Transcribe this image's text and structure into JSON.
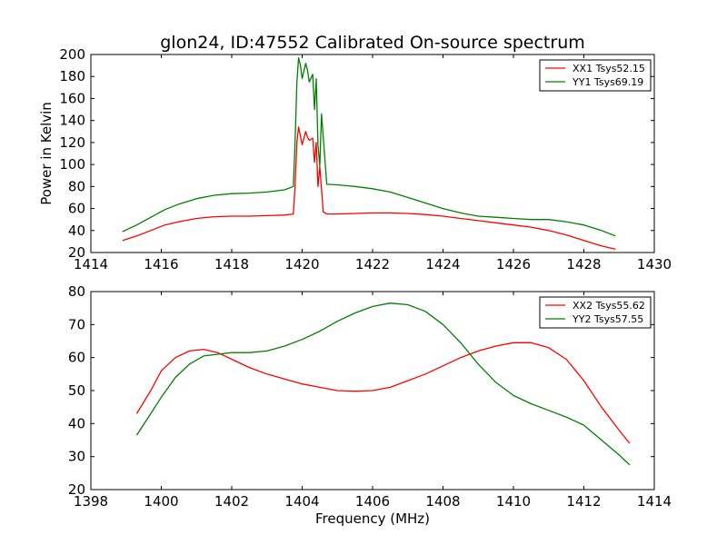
{
  "chart_data": [
    {
      "type": "line",
      "title": "glon24, ID:47552 Calibrated On-source spectrum",
      "xlabel": "",
      "ylabel": "Power in Kelvin",
      "xlim": [
        1414,
        1430
      ],
      "ylim": [
        20,
        200
      ],
      "xticks": [
        "1414",
        "1416",
        "1418",
        "1420",
        "1422",
        "1424",
        "1426",
        "1428",
        "1430"
      ],
      "yticks": [
        "20",
        "40",
        "60",
        "80",
        "100",
        "120",
        "140",
        "160",
        "180",
        "200"
      ],
      "legend_position": "top-right",
      "series": [
        {
          "name": "XX1 Tsys52.15",
          "color": "#ff0000",
          "x": [
            1414.9,
            1415.3,
            1415.7,
            1416.1,
            1416.5,
            1417.0,
            1417.5,
            1418.0,
            1418.5,
            1419.0,
            1419.5,
            1419.75,
            1419.8,
            1419.85,
            1419.9,
            1420.0,
            1420.1,
            1420.15,
            1420.2,
            1420.3,
            1420.35,
            1420.4,
            1420.45,
            1420.5,
            1420.6,
            1420.7,
            1421.0,
            1421.5,
            1422.0,
            1422.5,
            1423.0,
            1423.5,
            1424.0,
            1424.5,
            1425.0,
            1425.5,
            1426.0,
            1426.5,
            1427.0,
            1427.5,
            1428.0,
            1428.5,
            1428.9
          ],
          "y": [
            31,
            35,
            40,
            45,
            48,
            51,
            52.5,
            53,
            53,
            53.5,
            54,
            55,
            80,
            120,
            134,
            118,
            130,
            125,
            122,
            124,
            102,
            120,
            80,
            98,
            57,
            55,
            55,
            55.5,
            56,
            56,
            55.5,
            54.5,
            53,
            51,
            49,
            47,
            45,
            43,
            40,
            36,
            31,
            26,
            23
          ]
        },
        {
          "name": "YY1 Tsys69.19",
          "color": "#008000",
          "x": [
            1414.9,
            1415.3,
            1415.7,
            1416.1,
            1416.5,
            1417.0,
            1417.5,
            1418.0,
            1418.5,
            1419.0,
            1419.5,
            1419.75,
            1419.8,
            1419.85,
            1419.9,
            1419.95,
            1420.0,
            1420.1,
            1420.15,
            1420.2,
            1420.3,
            1420.35,
            1420.4,
            1420.45,
            1420.5,
            1420.55,
            1420.7,
            1421.0,
            1421.5,
            1422.0,
            1422.5,
            1423.0,
            1423.5,
            1424.0,
            1424.5,
            1425.0,
            1425.5,
            1426.0,
            1426.5,
            1427.0,
            1427.5,
            1428.0,
            1428.5,
            1428.9
          ],
          "y": [
            39,
            45,
            52,
            59,
            64,
            69,
            72,
            73.5,
            74,
            75,
            77,
            80,
            120,
            175,
            197,
            190,
            178,
            192,
            186,
            175,
            182,
            150,
            178,
            118,
            98,
            146,
            82,
            81.5,
            80,
            78,
            75,
            70,
            65,
            60,
            56,
            53,
            52,
            51,
            50,
            50,
            48,
            45,
            40,
            35
          ]
        }
      ]
    },
    {
      "type": "line",
      "title": "",
      "xlabel": "Frequency (MHz)",
      "ylabel": "",
      "xlim": [
        1398,
        1414
      ],
      "ylim": [
        20,
        80
      ],
      "xticks": [
        "1398",
        "1400",
        "1402",
        "1404",
        "1406",
        "1408",
        "1410",
        "1412",
        "1414"
      ],
      "yticks": [
        "20",
        "30",
        "40",
        "50",
        "60",
        "70",
        "80"
      ],
      "legend_position": "top-right",
      "series": [
        {
          "name": "XX2 Tsys55.62",
          "color": "#ff0000",
          "x": [
            1399.3,
            1399.7,
            1400.0,
            1400.4,
            1400.8,
            1401.2,
            1401.6,
            1402.0,
            1402.5,
            1403.0,
            1403.5,
            1404.0,
            1404.5,
            1405.0,
            1405.5,
            1406.0,
            1406.5,
            1407.0,
            1407.5,
            1408.0,
            1408.5,
            1409.0,
            1409.5,
            1410.0,
            1410.5,
            1411.0,
            1411.5,
            1412.0,
            1412.5,
            1413.0,
            1413.3
          ],
          "y": [
            43,
            50,
            56,
            60,
            62,
            62.5,
            61.5,
            59.5,
            57,
            55,
            53.5,
            52,
            51,
            50,
            49.8,
            50,
            51,
            53,
            55,
            57.5,
            60,
            62,
            63.5,
            64.5,
            64.5,
            63,
            59.5,
            53,
            45,
            38,
            34
          ]
        },
        {
          "name": "YY2 Tsys57.55",
          "color": "#008000",
          "x": [
            1399.3,
            1399.7,
            1400.0,
            1400.4,
            1400.8,
            1401.2,
            1401.6,
            1402.0,
            1402.5,
            1403.0,
            1403.5,
            1404.0,
            1404.5,
            1405.0,
            1405.5,
            1406.0,
            1406.5,
            1407.0,
            1407.5,
            1408.0,
            1408.5,
            1409.0,
            1409.5,
            1410.0,
            1410.5,
            1411.0,
            1411.5,
            1412.0,
            1412.5,
            1413.0,
            1413.3
          ],
          "y": [
            36.5,
            43,
            48,
            54,
            58,
            60.5,
            61,
            61.5,
            61.5,
            62,
            63.5,
            65.5,
            68,
            71,
            73.5,
            75.5,
            76.5,
            76,
            74,
            70,
            64.5,
            58,
            52.5,
            48.5,
            46,
            44,
            42,
            39.5,
            35,
            30.5,
            27.5
          ]
        }
      ]
    }
  ]
}
